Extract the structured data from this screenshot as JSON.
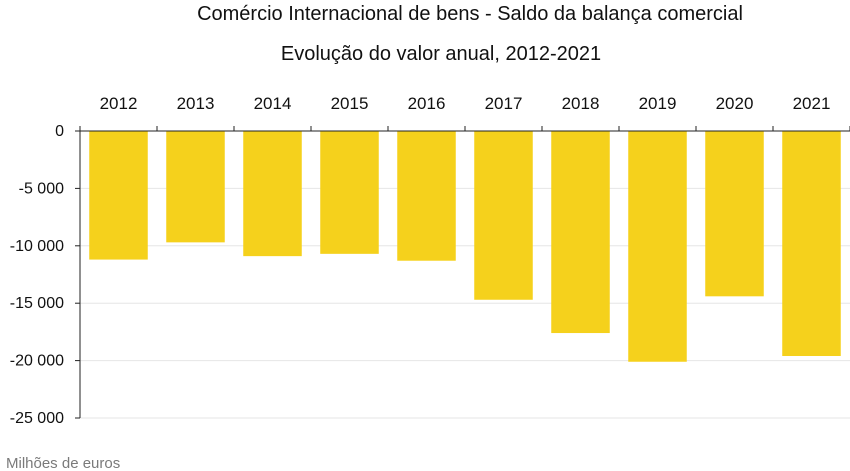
{
  "chart_data": {
    "type": "bar",
    "title": "Comércio Internacional de bens - Saldo da balança comercial",
    "subtitle": "Evolução do valor anual, 2012-2021",
    "unit_label": "Milhões de euros",
    "xlabel": "",
    "ylabel": "",
    "categories": [
      "2012",
      "2013",
      "2014",
      "2015",
      "2016",
      "2017",
      "2018",
      "2019",
      "2020",
      "2021"
    ],
    "values": [
      -11200,
      -9700,
      -10900,
      -10700,
      -11300,
      -14700,
      -17600,
      -20100,
      -14400,
      -19600
    ],
    "ylim": [
      -25000,
      0
    ],
    "yticks": [
      0,
      -5000,
      -10000,
      -15000,
      -20000,
      -25000
    ],
    "ytick_labels": [
      "0",
      "-5 000",
      "-10 000",
      "-15 000",
      "-20 000",
      "-25 000"
    ],
    "x_axis_position": "top",
    "grid": true,
    "legend": "none",
    "colors": {
      "bar": "#f5d11c",
      "grid": "#e6e6e6",
      "axis": "#222222"
    }
  }
}
